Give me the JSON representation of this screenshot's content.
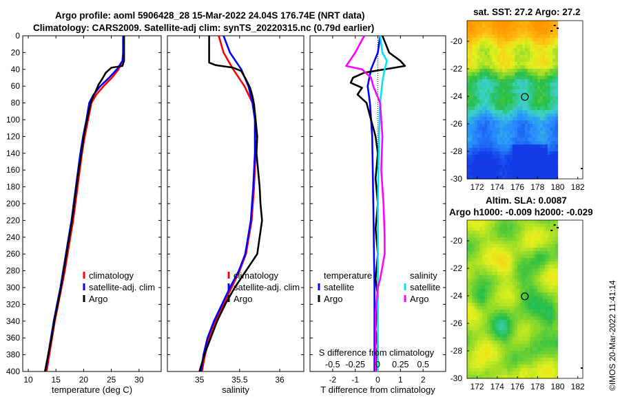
{
  "figure": {
    "title_line1": "Argo profile: aoml 5906428_28 15-Mar-2022 24.04S 176.74E (NRT data)",
    "title_line2": "Climatology: CARS2009. Satellite-adj clim: synTS_20220315.nc (0.79d earlier)",
    "credit": "©IMOS 20-Mar-2022 11:41:14"
  },
  "colors": {
    "red": "#ff0000",
    "blue": "#0000ff",
    "black": "#000000",
    "cyan": "#00e5ee",
    "magenta": "#ff00ff"
  },
  "chart_data": [
    {
      "type": "line",
      "name": "temperature-profile",
      "xlabel": "temperature (deg C)",
      "ylabel": "",
      "xlim": [
        9,
        34
      ],
      "ylim": [
        0,
        400
      ],
      "xticks": [
        "10",
        "15",
        "20",
        "25",
        "30"
      ],
      "xtick_values": [
        10,
        15,
        20,
        25,
        30
      ],
      "yticks": [
        "0",
        "20",
        "40",
        "60",
        "80",
        "100",
        "120",
        "140",
        "160",
        "180",
        "200",
        "220",
        "240",
        "260",
        "280",
        "300",
        "320",
        "340",
        "360",
        "380",
        "400"
      ],
      "ytick_values": [
        0,
        20,
        40,
        60,
        80,
        100,
        120,
        140,
        160,
        180,
        200,
        220,
        240,
        260,
        280,
        300,
        320,
        340,
        360,
        380,
        400
      ],
      "legend": [
        "climatology",
        "satellite-adj. clim",
        "Argo"
      ],
      "series": [
        {
          "name": "climatology",
          "color": "red",
          "points": [
            [
              27.1,
              0
            ],
            [
              27.1,
              20
            ],
            [
              27.0,
              30
            ],
            [
              26.3,
              40
            ],
            [
              25.1,
              50
            ],
            [
              23.6,
              60
            ],
            [
              22.3,
              70
            ],
            [
              21.4,
              80
            ],
            [
              20.8,
              100
            ],
            [
              20.2,
              120
            ],
            [
              19.7,
              140
            ],
            [
              19.3,
              160
            ],
            [
              18.9,
              180
            ],
            [
              18.5,
              200
            ],
            [
              18.1,
              220
            ],
            [
              17.6,
              240
            ],
            [
              17.1,
              260
            ],
            [
              16.6,
              280
            ],
            [
              16.0,
              300
            ],
            [
              15.4,
              320
            ],
            [
              14.8,
              340
            ],
            [
              14.3,
              360
            ],
            [
              13.8,
              380
            ],
            [
              13.3,
              400
            ]
          ]
        },
        {
          "name": "satellite-adj. clim",
          "color": "blue",
          "points": [
            [
              27.2,
              0
            ],
            [
              27.2,
              20
            ],
            [
              27.0,
              30
            ],
            [
              26.0,
              40
            ],
            [
              24.6,
              50
            ],
            [
              23.0,
              60
            ],
            [
              21.8,
              70
            ],
            [
              21.0,
              80
            ],
            [
              20.5,
              100
            ],
            [
              19.9,
              120
            ],
            [
              19.4,
              140
            ],
            [
              19.0,
              160
            ],
            [
              18.6,
              180
            ],
            [
              18.2,
              200
            ],
            [
              17.8,
              220
            ],
            [
              17.3,
              240
            ],
            [
              16.8,
              260
            ],
            [
              16.3,
              280
            ],
            [
              15.8,
              300
            ],
            [
              15.2,
              320
            ],
            [
              14.6,
              340
            ],
            [
              14.1,
              360
            ],
            [
              13.6,
              380
            ],
            [
              13.1,
              400
            ]
          ]
        },
        {
          "name": "Argo",
          "color": "black",
          "points": [
            [
              27.3,
              0
            ],
            [
              27.3,
              20
            ],
            [
              27.3,
              30
            ],
            [
              27.0,
              36
            ],
            [
              25.0,
              38
            ],
            [
              24.0,
              44
            ],
            [
              23.3,
              52
            ],
            [
              22.7,
              58
            ],
            [
              22.2,
              66
            ],
            [
              21.6,
              74
            ],
            [
              21.2,
              82
            ],
            [
              20.6,
              100
            ],
            [
              20.0,
              120
            ],
            [
              19.6,
              140
            ],
            [
              19.1,
              160
            ],
            [
              18.7,
              180
            ],
            [
              18.3,
              200
            ],
            [
              17.9,
              220
            ],
            [
              17.4,
              240
            ],
            [
              16.9,
              260
            ],
            [
              16.4,
              280
            ],
            [
              15.9,
              300
            ],
            [
              15.3,
              320
            ],
            [
              14.7,
              340
            ],
            [
              14.2,
              360
            ],
            [
              13.6,
              380
            ],
            [
              13.0,
              400
            ]
          ]
        }
      ]
    },
    {
      "type": "line",
      "name": "salinity-profile",
      "xlabel": "salinity",
      "xlim": [
        34.6,
        36.3
      ],
      "ylim": [
        0,
        400
      ],
      "xticks": [
        "35",
        "35.5",
        "36"
      ],
      "xtick_values": [
        35,
        35.5,
        36
      ],
      "legend": [
        "climatology",
        "satellite-adj. clim",
        "Argo"
      ],
      "series": [
        {
          "name": "climatology",
          "color": "red",
          "points": [
            [
              35.24,
              0
            ],
            [
              35.3,
              20
            ],
            [
              35.42,
              40
            ],
            [
              35.56,
              60
            ],
            [
              35.66,
              80
            ],
            [
              35.7,
              100
            ],
            [
              35.7,
              140
            ],
            [
              35.68,
              180
            ],
            [
              35.65,
              220
            ],
            [
              35.58,
              260
            ],
            [
              35.5,
              280
            ],
            [
              35.4,
              300
            ],
            [
              35.3,
              320
            ],
            [
              35.2,
              340
            ],
            [
              35.12,
              360
            ],
            [
              35.07,
              380
            ],
            [
              35.03,
              400
            ]
          ]
        },
        {
          "name": "satellite-adj. clim",
          "color": "blue",
          "points": [
            [
              35.3,
              0
            ],
            [
              35.38,
              20
            ],
            [
              35.52,
              40
            ],
            [
              35.61,
              60
            ],
            [
              35.66,
              80
            ],
            [
              35.69,
              100
            ],
            [
              35.69,
              140
            ],
            [
              35.67,
              180
            ],
            [
              35.64,
              220
            ],
            [
              35.57,
              260
            ],
            [
              35.49,
              280
            ],
            [
              35.38,
              300
            ],
            [
              35.28,
              320
            ],
            [
              35.18,
              340
            ],
            [
              35.1,
              360
            ],
            [
              35.05,
              380
            ],
            [
              35.02,
              400
            ]
          ]
        },
        {
          "name": "Argo",
          "color": "black",
          "points": [
            [
              35.12,
              0
            ],
            [
              35.12,
              20
            ],
            [
              35.12,
              32
            ],
            [
              35.2,
              35
            ],
            [
              35.42,
              38
            ],
            [
              35.52,
              42
            ],
            [
              35.58,
              52
            ],
            [
              35.63,
              62
            ],
            [
              35.66,
              72
            ],
            [
              35.68,
              82
            ],
            [
              35.7,
              100
            ],
            [
              35.72,
              120
            ],
            [
              35.71,
              140
            ],
            [
              35.73,
              160
            ],
            [
              35.75,
              180
            ],
            [
              35.76,
              200
            ],
            [
              35.78,
              220
            ],
            [
              35.75,
              240
            ],
            [
              35.72,
              260
            ],
            [
              35.58,
              280
            ],
            [
              35.44,
              300
            ],
            [
              35.32,
              320
            ],
            [
              35.22,
              340
            ],
            [
              35.14,
              360
            ],
            [
              35.06,
              380
            ],
            [
              35.0,
              400
            ]
          ]
        }
      ]
    },
    {
      "type": "line",
      "name": "difference-profile",
      "xlabel": "T difference from climatology",
      "xlabel_top": "S difference from climatology",
      "xlim": [
        -3,
        3
      ],
      "ylim": [
        0,
        400
      ],
      "xticks": [
        "-2",
        "-1",
        "0",
        "1",
        "2"
      ],
      "xtick_values": [
        -2,
        -1,
        0,
        1,
        2
      ],
      "xticks_top": [
        "-0.5",
        "-0.25",
        "0",
        "0.25",
        "0.5"
      ],
      "xtick_top_values": [
        -2,
        -1,
        0,
        1,
        2
      ],
      "legend_temperature": "temperature",
      "legend_salinity": "salinity",
      "legend": [
        "satellite",
        "Argo",
        "satellite",
        "Argo"
      ],
      "series": [
        {
          "name": "T satellite",
          "color": "blue",
          "points": [
            [
              0.1,
              0
            ],
            [
              0.0,
              20
            ],
            [
              -0.3,
              40
            ],
            [
              -0.45,
              60
            ],
            [
              -0.35,
              80
            ],
            [
              -0.25,
              120
            ],
            [
              -0.2,
              200
            ],
            [
              -0.15,
              300
            ],
            [
              -0.15,
              400
            ]
          ]
        },
        {
          "name": "T Argo",
          "color": "black",
          "points": [
            [
              0.2,
              0
            ],
            [
              0.5,
              20
            ],
            [
              1.0,
              30
            ],
            [
              1.2,
              36
            ],
            [
              -0.6,
              44
            ],
            [
              -1.1,
              50
            ],
            [
              -1.2,
              56
            ],
            [
              -0.7,
              62
            ],
            [
              -0.9,
              70
            ],
            [
              -0.5,
              80
            ],
            [
              -0.3,
              100
            ],
            [
              -0.1,
              120
            ],
            [
              0.0,
              140
            ],
            [
              -0.1,
              170
            ],
            [
              0.0,
              200
            ],
            [
              -0.1,
              230
            ],
            [
              0.0,
              260
            ],
            [
              -0.1,
              290
            ],
            [
              0.0,
              310
            ],
            [
              -0.1,
              350
            ],
            [
              0.0,
              370
            ],
            [
              -0.1,
              390
            ],
            [
              0.0,
              400
            ]
          ]
        },
        {
          "name": "S satellite",
          "color": "cyan",
          "points": [
            [
              0.1,
              0
            ],
            [
              0.2,
              20
            ],
            [
              0.4,
              30
            ],
            [
              0.3,
              40
            ],
            [
              0.2,
              55
            ],
            [
              0.1,
              80
            ],
            [
              0.05,
              120
            ],
            [
              0.0,
              200
            ],
            [
              0.0,
              400
            ]
          ]
        },
        {
          "name": "S Argo",
          "color": "magenta",
          "points": [
            [
              -0.6,
              0
            ],
            [
              -1.0,
              20
            ],
            [
              -1.4,
              36
            ],
            [
              -0.7,
              40
            ],
            [
              -0.3,
              50
            ],
            [
              -0.2,
              60
            ],
            [
              0.1,
              80
            ],
            [
              0.2,
              120
            ],
            [
              0.15,
              160
            ],
            [
              0.25,
              200
            ],
            [
              0.3,
              240
            ],
            [
              0.3,
              260
            ],
            [
              0.1,
              290
            ],
            [
              0.0,
              300
            ],
            [
              -0.1,
              330
            ],
            [
              -0.1,
              360
            ],
            [
              -0.1,
              400
            ]
          ]
        }
      ]
    },
    {
      "type": "heatmap",
      "name": "sst-map",
      "title": "sat. SST: 27.2 Argo: 27.2",
      "xlim": [
        171,
        182.5
      ],
      "ylim": [
        -30,
        -18.5
      ],
      "xticks": [
        "172",
        "174",
        "176",
        "178",
        "180",
        "182"
      ],
      "xtick_values": [
        172,
        174,
        176,
        178,
        180,
        182
      ],
      "yticks": [
        "-20",
        "-22",
        "-24",
        "-26",
        "-28",
        "-30"
      ],
      "ytick_values": [
        -20,
        -22,
        -24,
        -26,
        -28,
        -30
      ],
      "argo_marker": {
        "lon": 176.74,
        "lat": -24.04
      },
      "data_east_limit_lon": 180
    },
    {
      "type": "heatmap",
      "name": "sla-map",
      "title_line1": "Altim. SLA: 0.0087",
      "title_line2": "Argo h1000: -0.009 h2000: -0.029",
      "xlim": [
        171,
        182.5
      ],
      "ylim": [
        -30,
        -18.5
      ],
      "xticks": [
        "172",
        "174",
        "176",
        "178",
        "180",
        "182"
      ],
      "xtick_values": [
        172,
        174,
        176,
        178,
        180,
        182
      ],
      "yticks": [
        "-20",
        "-22",
        "-24",
        "-26",
        "-28",
        "-30"
      ],
      "ytick_values": [
        -20,
        -22,
        -24,
        -26,
        -28,
        -30
      ],
      "argo_marker": {
        "lon": 176.74,
        "lat": -24.04
      },
      "data_east_limit_lon": 180
    }
  ]
}
